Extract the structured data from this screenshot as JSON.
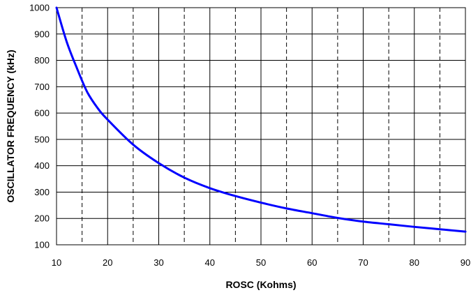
{
  "chart_data": {
    "type": "line",
    "title": "",
    "xlabel": "ROSC (Kohms)",
    "ylabel": "OSCILLATOR FREQUENCY (kHz)",
    "xlim": [
      10,
      90
    ],
    "ylim": [
      100,
      1000
    ],
    "x_ticks": [
      "10",
      "20",
      "30",
      "40",
      "50",
      "60",
      "70",
      "80",
      "90"
    ],
    "y_ticks": [
      "100",
      "200",
      "300",
      "400",
      "500",
      "600",
      "700",
      "800",
      "900",
      "1000"
    ],
    "grid": "on",
    "minor_x_grid": "dashed",
    "series": [
      {
        "color": "#0000ff",
        "x": [
          10,
          12,
          14,
          16,
          18,
          20,
          25,
          30,
          35,
          40,
          45,
          50,
          55,
          60,
          65,
          70,
          75,
          80,
          85,
          90
        ],
        "y": [
          1000,
          870,
          770,
          680,
          620,
          575,
          480,
          410,
          355,
          315,
          285,
          260,
          238,
          220,
          202,
          188,
          178,
          168,
          159,
          150
        ]
      }
    ]
  }
}
